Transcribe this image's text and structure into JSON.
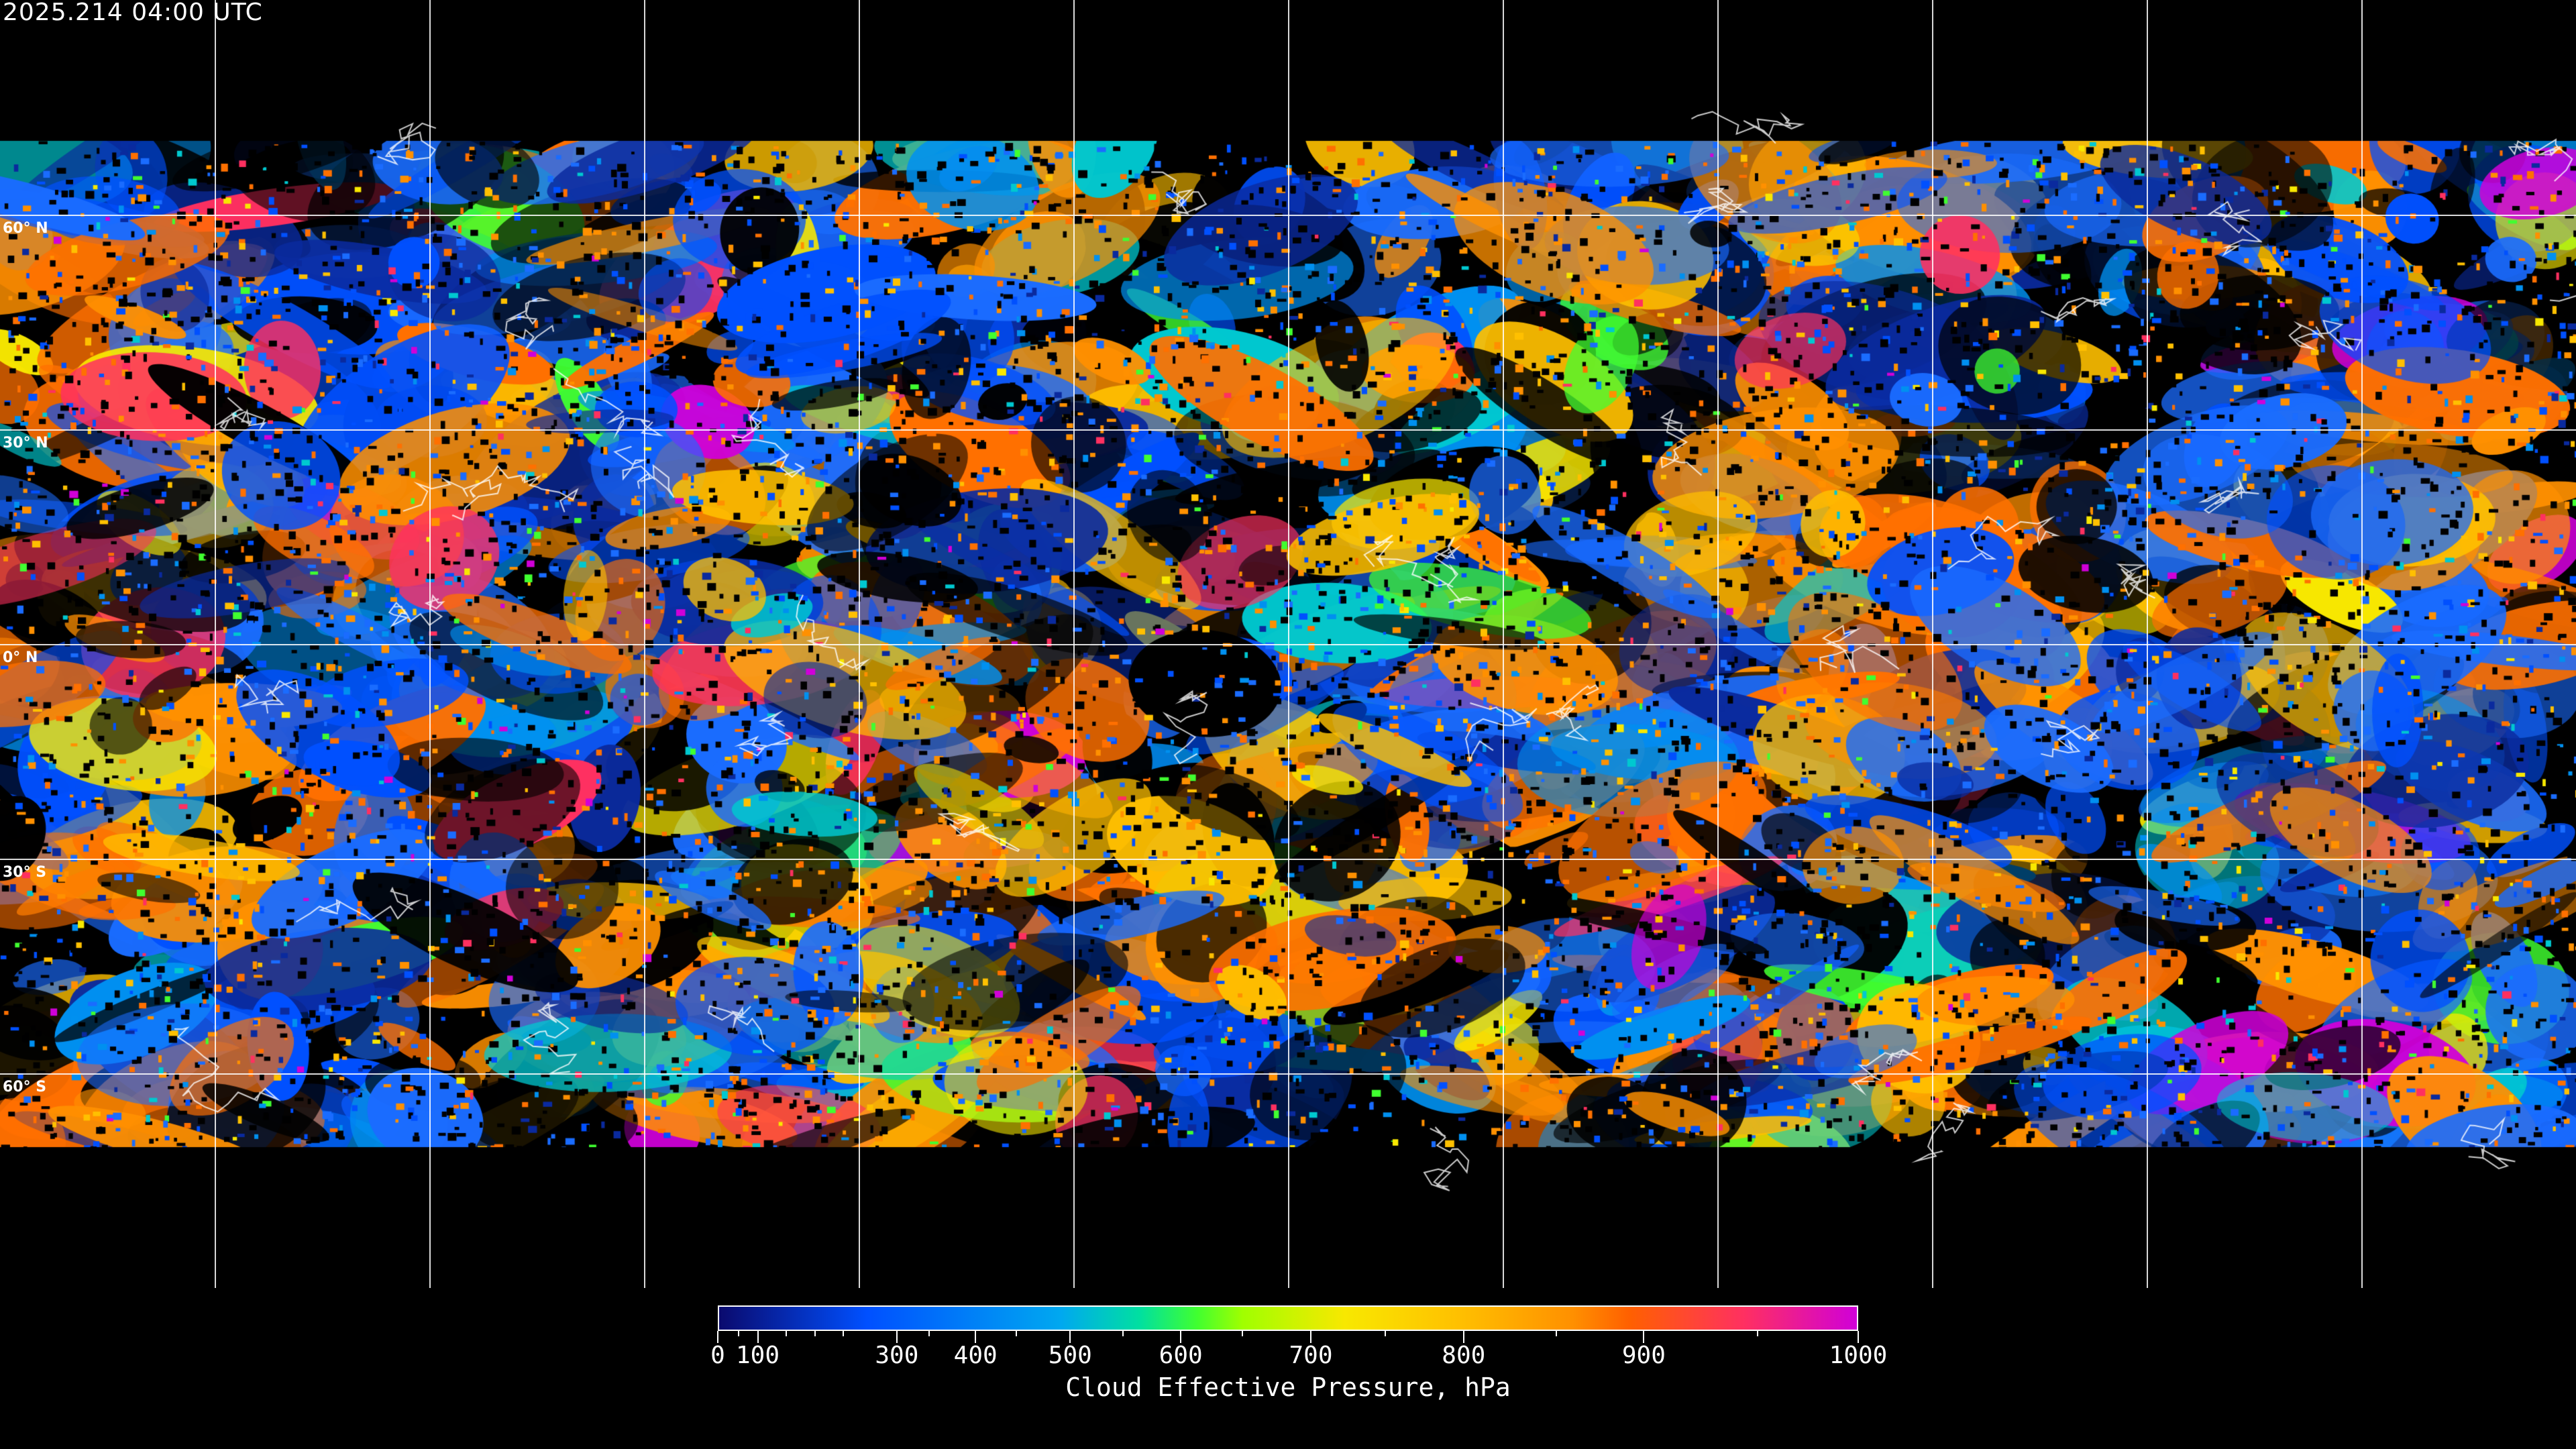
{
  "timestamp": "2025.214 04:00 UTC",
  "map": {
    "latitude_labels": [
      "60° N",
      "30° N",
      "0° N",
      "30° S",
      "60° S"
    ],
    "background": "#000000",
    "grid_color": "#ffffff",
    "coastline_color": "#ffffff"
  },
  "colorbar": {
    "title": "Cloud Effective Pressure, hPa",
    "min": 0,
    "max": 1000,
    "tick_labels": [
      "0",
      "100",
      "300",
      "400",
      "500",
      "600",
      "700",
      "800",
      "900",
      "1000"
    ],
    "colors": [
      "#0a0a6e",
      "#0050ff",
      "#00a8f0",
      "#00e0a0",
      "#40ff30",
      "#a0ff00",
      "#f8e800",
      "#ffc000",
      "#ff9000",
      "#ff6000",
      "#ff3060",
      "#d000d8"
    ]
  }
}
